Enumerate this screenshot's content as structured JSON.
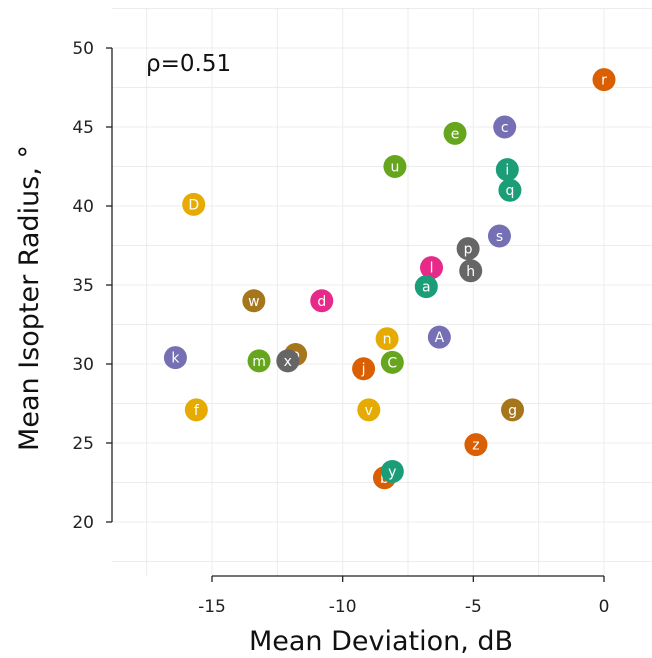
{
  "chart_data": {
    "type": "scatter",
    "xlabel": "Mean Deviation, dB",
    "ylabel": "Mean Isopter Radius, °",
    "annotation": "ρ=0.51",
    "xlim": [
      -18,
      1.5
    ],
    "ylim": [
      17,
      51
    ],
    "xticks": [
      -15,
      -10,
      -5,
      0
    ],
    "yticks": [
      20,
      25,
      30,
      35,
      40,
      45,
      50
    ],
    "x_axis_range": [
      -15,
      0
    ],
    "y_axis_range": [
      20,
      50
    ],
    "grid": true,
    "points": [
      {
        "label": "r",
        "x": 0.0,
        "y": 48.0,
        "color": "#d95f02"
      },
      {
        "label": "c",
        "x": -3.8,
        "y": 45.0,
        "color": "#7570b3"
      },
      {
        "label": "e",
        "x": -5.7,
        "y": 44.6,
        "color": "#66a61e"
      },
      {
        "label": "u",
        "x": -8.0,
        "y": 42.5,
        "color": "#66a61e"
      },
      {
        "label": "i",
        "x": -3.7,
        "y": 42.3,
        "color": "#1b9e77"
      },
      {
        "label": "q",
        "x": -3.6,
        "y": 41.0,
        "color": "#1b9e77"
      },
      {
        "label": "D",
        "x": -15.7,
        "y": 40.1,
        "color": "#e6ab02"
      },
      {
        "label": "s",
        "x": -4.0,
        "y": 38.1,
        "color": "#7570b3"
      },
      {
        "label": "p",
        "x": -5.2,
        "y": 37.3,
        "color": "#666666"
      },
      {
        "label": "l",
        "x": -6.6,
        "y": 36.1,
        "color": "#e7298a"
      },
      {
        "label": "h",
        "x": -5.1,
        "y": 35.9,
        "color": "#666666"
      },
      {
        "label": "a",
        "x": -6.8,
        "y": 34.9,
        "color": "#1b9e77"
      },
      {
        "label": "w",
        "x": -13.4,
        "y": 34.0,
        "color": "#a6761d"
      },
      {
        "label": "d",
        "x": -10.8,
        "y": 34.0,
        "color": "#e7298a"
      },
      {
        "label": "A",
        "x": -6.3,
        "y": 31.7,
        "color": "#7570b3"
      },
      {
        "label": "n",
        "x": -8.3,
        "y": 31.6,
        "color": "#e6ab02"
      },
      {
        "label": "k",
        "x": -16.4,
        "y": 30.4,
        "color": "#7570b3"
      },
      {
        "label": "o",
        "x": -11.8,
        "y": 30.6,
        "color": "#a6761d"
      },
      {
        "label": "x",
        "x": -12.1,
        "y": 30.2,
        "color": "#666666"
      },
      {
        "label": "m",
        "x": -13.2,
        "y": 30.2,
        "color": "#66a61e"
      },
      {
        "label": "C",
        "x": -8.1,
        "y": 30.1,
        "color": "#66a61e"
      },
      {
        "label": "j",
        "x": -9.2,
        "y": 29.7,
        "color": "#d95f02"
      },
      {
        "label": "f",
        "x": -15.6,
        "y": 27.1,
        "color": "#e6ab02"
      },
      {
        "label": "v",
        "x": -9.0,
        "y": 27.1,
        "color": "#e6ab02"
      },
      {
        "label": "g",
        "x": -3.5,
        "y": 27.1,
        "color": "#a6761d"
      },
      {
        "label": "z",
        "x": -4.9,
        "y": 24.9,
        "color": "#d95f02"
      },
      {
        "label": "b",
        "x": -8.4,
        "y": 22.8,
        "color": "#d95f02"
      },
      {
        "label": "y",
        "x": -8.1,
        "y": 23.2,
        "color": "#1b9e77"
      }
    ]
  }
}
